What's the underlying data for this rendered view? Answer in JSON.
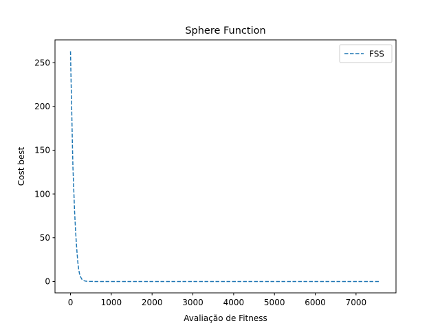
{
  "chart_data": {
    "type": "line",
    "title": "Sphere Function",
    "xlabel": "Avaliação de Fitness",
    "ylabel": "Cost best",
    "xlim": [
      -380,
      7980
    ],
    "ylim": [
      -13,
      276
    ],
    "xticks": [
      0,
      1000,
      2000,
      3000,
      4000,
      5000,
      6000,
      7000
    ],
    "yticks": [
      0,
      50,
      100,
      150,
      200,
      250
    ],
    "grid": false,
    "legend": {
      "position": "top-right",
      "entries": [
        "FSS"
      ]
    },
    "series": [
      {
        "name": "FSS",
        "color": "#1f77b4",
        "line_style": "dashed",
        "x": [
          0,
          10,
          20,
          30,
          40,
          50,
          60,
          80,
          100,
          120,
          140,
          160,
          180,
          200,
          220,
          250,
          280,
          320,
          380,
          450,
          600,
          1000,
          2000,
          3000,
          4000,
          5000,
          6000,
          7000,
          7600
        ],
        "y": [
          263,
          238,
          218,
          195,
          172,
          150,
          130,
          105,
          80,
          62,
          46,
          33,
          22,
          14,
          9,
          5,
          2.5,
          1,
          0.3,
          0.1,
          0,
          0,
          0,
          0,
          0,
          0,
          0,
          0,
          0
        ]
      }
    ]
  }
}
